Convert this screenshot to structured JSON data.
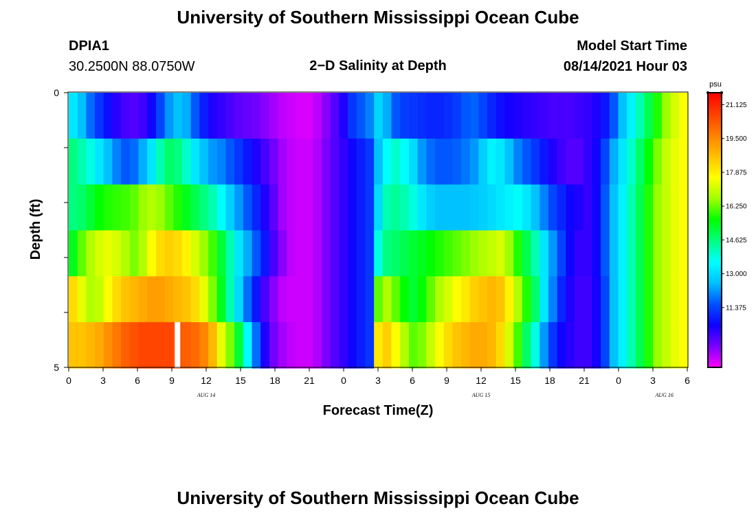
{
  "header": {
    "title": "University of Southern Mississippi Ocean Cube",
    "footer_title": "University of Southern Mississippi Ocean Cube",
    "station": "DPIA1",
    "coordinates": "30.2500N  88.0750W",
    "subtitle": "2−D Salinity at Depth",
    "model_start_label": "Model Start Time",
    "model_start_value": "08/14/2021 Hour 03"
  },
  "colorbar": {
    "unit": "psu",
    "min": 8.5,
    "max": 21.7,
    "labels": [
      "21.125",
      "19.500",
      "17.875",
      "16.250",
      "14.625",
      "13.000",
      "11.375"
    ],
    "colors": [
      "#ff00ff",
      "#7a00ff",
      "#1000ff",
      "#0050ff",
      "#00c0ff",
      "#00ffff",
      "#00ff80",
      "#00ff00",
      "#a0ff00",
      "#ffff00",
      "#ffc000",
      "#ff8000",
      "#ff4000",
      "#ff0000"
    ]
  },
  "chart_data": {
    "type": "heatmap",
    "title": "2−D Salinity at Depth",
    "xlabel": "Forecast Time(Z)",
    "ylabel": "Depth (ft)",
    "x_ticks": [
      "0",
      "3",
      "6",
      "9",
      "12",
      "15",
      "18",
      "21",
      "0",
      "3",
      "6",
      "9",
      "12",
      "15",
      "18",
      "21",
      "0",
      "3",
      "6"
    ],
    "date_labels": [
      {
        "label": "AUG 14",
        "hour": 12
      },
      {
        "label": "AUG 15",
        "hour": 36
      },
      {
        "label": "AUG 16",
        "hour": 52
      }
    ],
    "y_tick_labels": {
      "top": "0",
      "bottom": "5"
    },
    "y_range": [
      0,
      5
    ],
    "x_range": [
      0,
      54
    ],
    "rows": [
      [
        13.2,
        12.6,
        11.8,
        11.2,
        10.7,
        10.3,
        10.0,
        9.9,
        10.1,
        10.6,
        11.4,
        12.2,
        12.6,
        12.4,
        11.6,
        10.9,
        10.4,
        10.2,
        10.0,
        9.8,
        9.7,
        9.6,
        9.4,
        9.2,
        9.0,
        8.9,
        8.8,
        8.8,
        9.0,
        9.4,
        9.9,
        10.4,
        11.2,
        11.6,
        12.0,
        12.9,
        12.4,
        11.6,
        11.3,
        11.2,
        11.1,
        11.0,
        11.0,
        11.1,
        11.3,
        11.6,
        11.7,
        11.4,
        11.0,
        10.7,
        10.5,
        10.4,
        10.3,
        10.2,
        10.1,
        10.0,
        10.0,
        10.0,
        10.1,
        10.2,
        10.4,
        10.8,
        11.6,
        12.6,
        13.4,
        14.2,
        15.0,
        15.8,
        16.6,
        17.2,
        17.6
      ],
      [
        14.6,
        14.2,
        13.8,
        13.2,
        12.6,
        12.0,
        11.6,
        11.8,
        12.4,
        13.2,
        14.2,
        14.8,
        14.6,
        14.0,
        13.2,
        12.6,
        12.2,
        12.0,
        11.6,
        11.2,
        10.8,
        10.4,
        10.0,
        9.6,
        9.2,
        9.0,
        8.9,
        8.9,
        9.1,
        9.5,
        9.9,
        10.2,
        10.6,
        10.9,
        11.2,
        12.6,
        13.6,
        14.0,
        13.6,
        13.0,
        12.2,
        11.8,
        11.6,
        11.6,
        11.7,
        11.9,
        12.2,
        12.8,
        13.4,
        13.2,
        12.6,
        12.0,
        11.6,
        11.2,
        10.8,
        10.4,
        10.1,
        9.9,
        9.9,
        10.2,
        10.6,
        11.4,
        12.4,
        13.2,
        14.0,
        14.8,
        15.6,
        16.4,
        17.0,
        17.4,
        17.6
      ],
      [
        14.6,
        14.8,
        15.2,
        15.6,
        15.8,
        15.9,
        16.0,
        16.2,
        16.6,
        16.8,
        16.6,
        16.2,
        15.8,
        15.4,
        15.0,
        14.6,
        14.2,
        13.6,
        12.8,
        12.2,
        11.6,
        11.0,
        10.4,
        9.8,
        9.2,
        9.0,
        8.9,
        8.9,
        9.1,
        9.5,
        9.9,
        10.2,
        10.6,
        10.9,
        11.2,
        13.0,
        14.2,
        14.4,
        14.2,
        13.8,
        13.2,
        12.8,
        12.6,
        12.6,
        12.6,
        12.6,
        12.7,
        12.8,
        13.0,
        13.2,
        13.4,
        13.6,
        13.2,
        12.6,
        12.0,
        11.4,
        11.0,
        10.6,
        10.4,
        10.2,
        10.6,
        11.6,
        12.6,
        13.4,
        14.2,
        15.0,
        15.8,
        16.6,
        17.0,
        17.4,
        17.6
      ],
      [
        15.4,
        16.2,
        16.8,
        17.2,
        17.4,
        17.2,
        16.8,
        16.4,
        16.8,
        17.6,
        18.2,
        18.4,
        18.2,
        17.8,
        17.2,
        16.6,
        16.0,
        15.2,
        14.2,
        13.2,
        12.4,
        11.6,
        10.8,
        10.0,
        9.4,
        9.0,
        8.9,
        8.9,
        9.1,
        9.5,
        9.9,
        10.2,
        10.6,
        10.9,
        11.2,
        13.8,
        14.6,
        14.8,
        15.0,
        15.2,
        15.4,
        15.6,
        15.8,
        16.0,
        16.2,
        16.4,
        16.6,
        16.8,
        17.0,
        17.2,
        16.6,
        15.8,
        15.0,
        14.2,
        13.2,
        12.2,
        11.4,
        10.6,
        10.2,
        10.2,
        10.6,
        11.6,
        12.6,
        13.4,
        14.2,
        15.0,
        15.8,
        16.6,
        17.0,
        17.4,
        17.6
      ],
      [
        18.2,
        17.4,
        16.8,
        17.0,
        17.6,
        18.2,
        18.6,
        18.8,
        19.0,
        19.2,
        19.2,
        19.0,
        18.8,
        18.6,
        18.2,
        17.4,
        16.4,
        15.4,
        14.2,
        13.0,
        11.8,
        10.8,
        10.0,
        9.4,
        9.0,
        8.9,
        8.9,
        8.9,
        9.1,
        9.5,
        9.9,
        10.2,
        10.6,
        10.9,
        11.2,
        16.2,
        16.8,
        16.2,
        15.6,
        15.2,
        15.6,
        16.2,
        16.8,
        17.2,
        17.6,
        18.0,
        18.4,
        18.6,
        18.8,
        18.6,
        17.8,
        16.8,
        15.8,
        14.8,
        13.2,
        12.0,
        11.0,
        10.4,
        10.1,
        10.1,
        10.5,
        11.4,
        12.6,
        13.4,
        14.2,
        15.0,
        15.8,
        16.6,
        17.0,
        17.4,
        17.6
      ],
      [
        18.6,
        18.6,
        18.8,
        19.0,
        19.4,
        19.8,
        20.2,
        20.4,
        20.6,
        20.6,
        20.6,
        20.6,
        20.4,
        20.2,
        20.0,
        19.6,
        18.8,
        17.4,
        16.4,
        15.2,
        13.6,
        11.8,
        10.4,
        9.6,
        9.2,
        9.0,
        8.9,
        8.9,
        9.1,
        9.5,
        9.9,
        10.2,
        10.6,
        10.9,
        11.2,
        18.0,
        18.4,
        17.6,
        16.8,
        16.2,
        16.4,
        17.0,
        17.6,
        18.2,
        18.6,
        18.8,
        19.0,
        19.0,
        18.8,
        18.2,
        17.2,
        16.0,
        14.8,
        13.8,
        12.2,
        11.2,
        10.6,
        10.3,
        10.1,
        10.1,
        10.5,
        11.4,
        12.6,
        13.4,
        14.2,
        15.0,
        15.8,
        16.6,
        17.0,
        17.4,
        17.6
      ]
    ],
    "missing_cells": [
      {
        "row": 5,
        "hour": 9.5
      }
    ],
    "colorbar_range": [
      8.5,
      21.7
    ],
    "unit": "psu"
  }
}
